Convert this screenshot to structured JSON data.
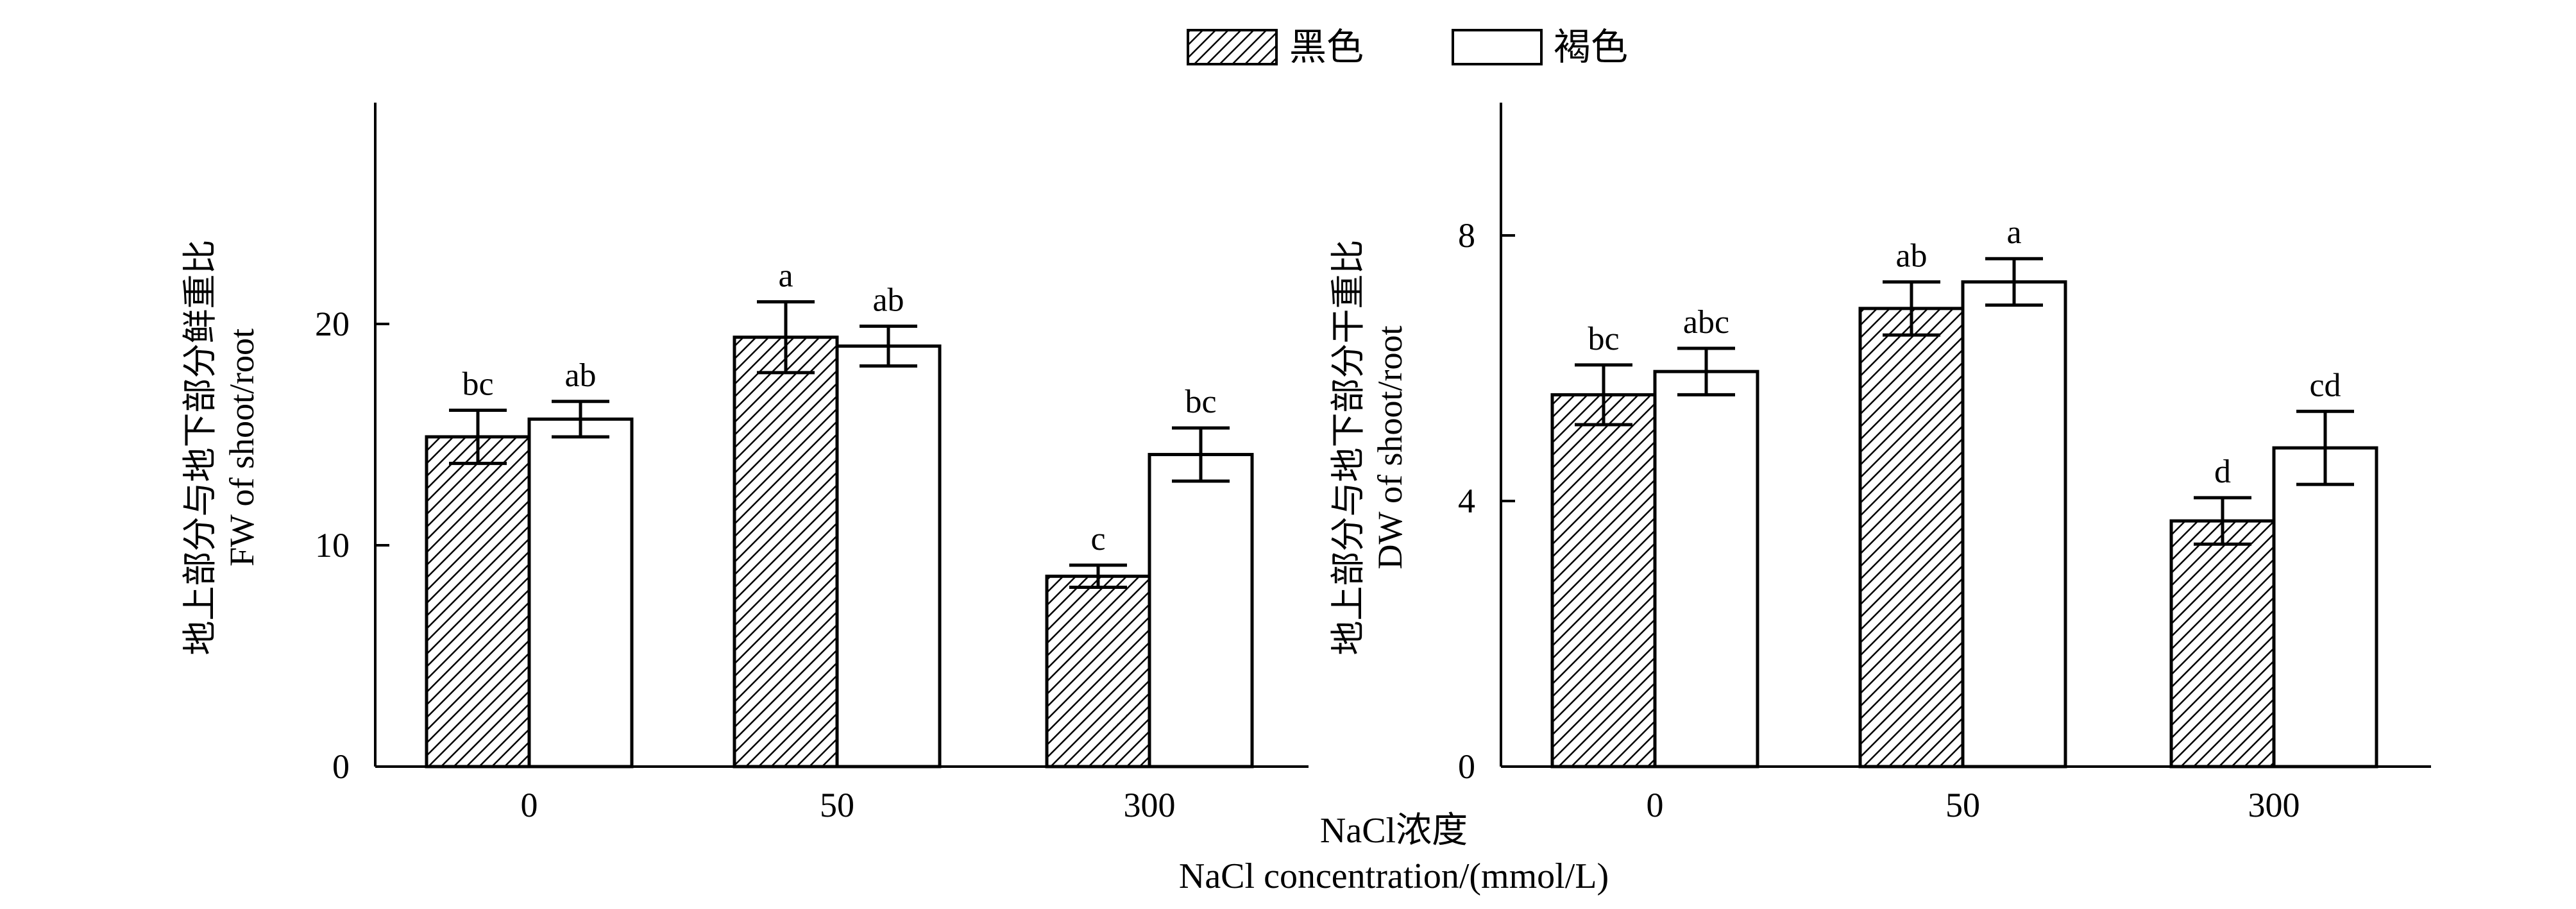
{
  "legend": [
    {
      "label": "黑色",
      "pattern": "hatch"
    },
    {
      "label": "褐色",
      "pattern": "empty"
    }
  ],
  "xlabel_cn": "NaCl浓度",
  "xlabel_en": "NaCl concentration/(mmol/L)",
  "colors": {
    "bar_fill_empty": "#ffffff",
    "stroke": "#000000",
    "hatch": "#000000"
  },
  "chart_data": [
    {
      "type": "bar",
      "categories": [
        "0",
        "50",
        "300"
      ],
      "ylabel_cn": "地上部分与地下部分鲜重比",
      "ylabel_en": "FW of shoot/root",
      "ylim": [
        0,
        30
      ],
      "yticks": [
        0,
        10,
        20
      ],
      "series": [
        {
          "name": "黑色",
          "values": [
            14.9,
            19.4,
            8.6
          ],
          "errors": [
            1.2,
            1.6,
            0.5
          ],
          "labels": [
            "bc",
            "a",
            "c"
          ]
        },
        {
          "name": "褐色",
          "values": [
            15.7,
            19.0,
            14.1
          ],
          "errors": [
            0.8,
            0.9,
            1.2
          ],
          "labels": [
            "ab",
            "ab",
            "bc"
          ]
        }
      ]
    },
    {
      "type": "bar",
      "categories": [
        "0",
        "50",
        "300"
      ],
      "ylabel_cn": "地上部分与地下部分干重比",
      "ylabel_en": "DW of shoot/root",
      "ylim": [
        0,
        10
      ],
      "yticks": [
        0,
        4,
        8
      ],
      "series": [
        {
          "name": "黑色",
          "values": [
            5.6,
            6.9,
            3.7
          ],
          "errors": [
            0.45,
            0.4,
            0.35
          ],
          "labels": [
            "bc",
            "ab",
            "d"
          ]
        },
        {
          "name": "褐色",
          "values": [
            5.95,
            7.3,
            4.8
          ],
          "errors": [
            0.35,
            0.35,
            0.55
          ],
          "labels": [
            "abc",
            "a",
            "cd"
          ]
        }
      ]
    }
  ]
}
